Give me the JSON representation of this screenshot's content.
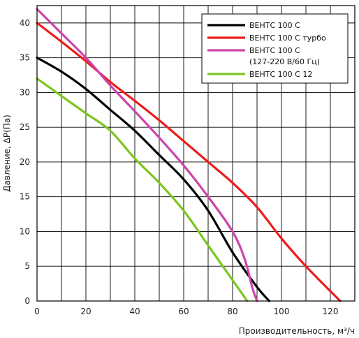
{
  "chart_data": {
    "type": "line",
    "xlabel": "Производительность, м³/ч",
    "ylabel": "Давление, ΔP(Па)",
    "xlim": [
      0,
      130
    ],
    "ylim": [
      0,
      42.5
    ],
    "x_ticks": [
      0,
      20,
      40,
      60,
      80,
      100,
      120
    ],
    "y_ticks": [
      0,
      5,
      10,
      15,
      20,
      25,
      30,
      35,
      40
    ],
    "grid": true,
    "legend_position": "top-right",
    "series": [
      {
        "name": "ВЕНТС 100 С",
        "color": "#000000",
        "points": [
          [
            0,
            35
          ],
          [
            10,
            33
          ],
          [
            20,
            30.5
          ],
          [
            30,
            27.5
          ],
          [
            40,
            24.5
          ],
          [
            50,
            21
          ],
          [
            60,
            17.5
          ],
          [
            70,
            13
          ],
          [
            80,
            7
          ],
          [
            90,
            2
          ],
          [
            95,
            0
          ]
        ]
      },
      {
        "name": "ВЕНТС 100 С турбо",
        "color": "#ee1c1c",
        "points": [
          [
            0,
            40
          ],
          [
            10,
            37.3
          ],
          [
            20,
            34.5
          ],
          [
            30,
            31.5
          ],
          [
            40,
            28.8
          ],
          [
            50,
            26
          ],
          [
            60,
            23
          ],
          [
            70,
            20
          ],
          [
            80,
            17
          ],
          [
            90,
            13.5
          ],
          [
            100,
            9
          ],
          [
            110,
            5
          ],
          [
            124,
            0
          ]
        ]
      },
      {
        "name": "ВЕНТС 100 С",
        "name_line2": "(127-220 В/60 Гц)",
        "color": "#cc44aa",
        "points": [
          [
            0,
            42
          ],
          [
            10,
            38.5
          ],
          [
            20,
            35
          ],
          [
            30,
            31
          ],
          [
            40,
            27.3
          ],
          [
            50,
            23.5
          ],
          [
            60,
            19.5
          ],
          [
            70,
            15
          ],
          [
            80,
            10
          ],
          [
            85,
            6
          ],
          [
            88,
            2
          ],
          [
            90,
            0
          ]
        ]
      },
      {
        "name": "ВЕНТС 100 С 12",
        "color": "#7dc520",
        "points": [
          [
            0,
            32
          ],
          [
            10,
            29.5
          ],
          [
            20,
            27
          ],
          [
            30,
            24.5
          ],
          [
            40,
            20.5
          ],
          [
            50,
            17
          ],
          [
            60,
            13
          ],
          [
            70,
            8
          ],
          [
            80,
            3
          ],
          [
            86,
            0
          ]
        ]
      }
    ]
  }
}
